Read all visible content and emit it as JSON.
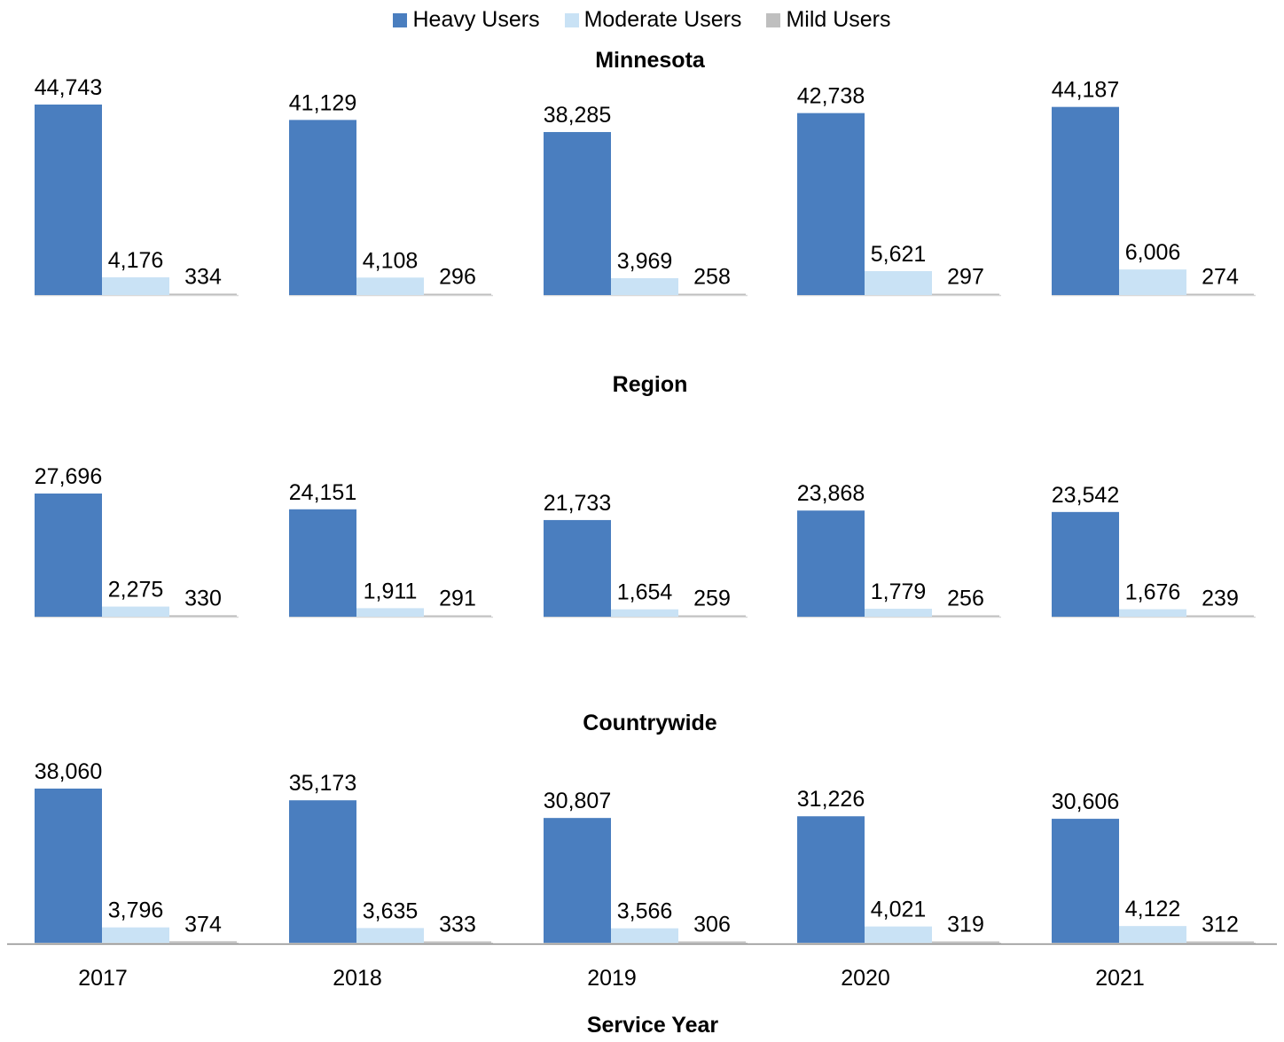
{
  "legend": {
    "position": "top-center",
    "items": [
      {
        "name": "Heavy Users",
        "color": "#4a7ebf"
      },
      {
        "name": "Moderate Users",
        "color": "#c9e2f5"
      },
      {
        "name": "Mild Users",
        "color": "#bfbfbf"
      }
    ]
  },
  "chart_data": {
    "type": "bar",
    "xlabel": "Service Year",
    "categories": [
      "2017",
      "2018",
      "2019",
      "2020",
      "2021"
    ],
    "panels": [
      {
        "title": "Minnesota",
        "series": [
          {
            "name": "Heavy Users",
            "values": [
              44743,
              41129,
              38285,
              42738,
              44187
            ],
            "labels": [
              "44,743",
              "41,129",
              "38,285",
              "42,738",
              "44,187"
            ]
          },
          {
            "name": "Moderate Users",
            "values": [
              4176,
              4108,
              3969,
              5621,
              6006
            ],
            "labels": [
              "4,176",
              "4,108",
              "3,969",
              "5,621",
              "6,006"
            ]
          },
          {
            "name": "Mild Users",
            "values": [
              334,
              296,
              258,
              297,
              274
            ],
            "labels": [
              "334",
              "296",
              "258",
              "297",
              "274"
            ]
          }
        ]
      },
      {
        "title": "Region",
        "series": [
          {
            "name": "Heavy Users",
            "values": [
              27696,
              24151,
              21733,
              23868,
              23542
            ],
            "labels": [
              "27,696",
              "24,151",
              "21,733",
              "23,868",
              "23,542"
            ]
          },
          {
            "name": "Moderate Users",
            "values": [
              2275,
              1911,
              1654,
              1779,
              1676
            ],
            "labels": [
              "2,275",
              "1,911",
              "1,654",
              "1,779",
              "1,676"
            ]
          },
          {
            "name": "Mild Users",
            "values": [
              330,
              291,
              259,
              256,
              239
            ],
            "labels": [
              "330",
              "291",
              "259",
              "256",
              "239"
            ]
          }
        ]
      },
      {
        "title": "Countrywide",
        "series": [
          {
            "name": "Heavy Users",
            "values": [
              38060,
              35173,
              30807,
              31226,
              30606
            ],
            "labels": [
              "38,060",
              "35,173",
              "30,807",
              "31,226",
              "30,606"
            ]
          },
          {
            "name": "Moderate Users",
            "values": [
              3796,
              3635,
              3566,
              4021,
              4122
            ],
            "labels": [
              "3,796",
              "3,635",
              "3,566",
              "4,021",
              "4,122"
            ]
          },
          {
            "name": "Mild Users",
            "values": [
              374,
              333,
              306,
              319,
              312
            ],
            "labels": [
              "374",
              "333",
              "306",
              "319",
              "312"
            ]
          }
        ]
      }
    ]
  }
}
